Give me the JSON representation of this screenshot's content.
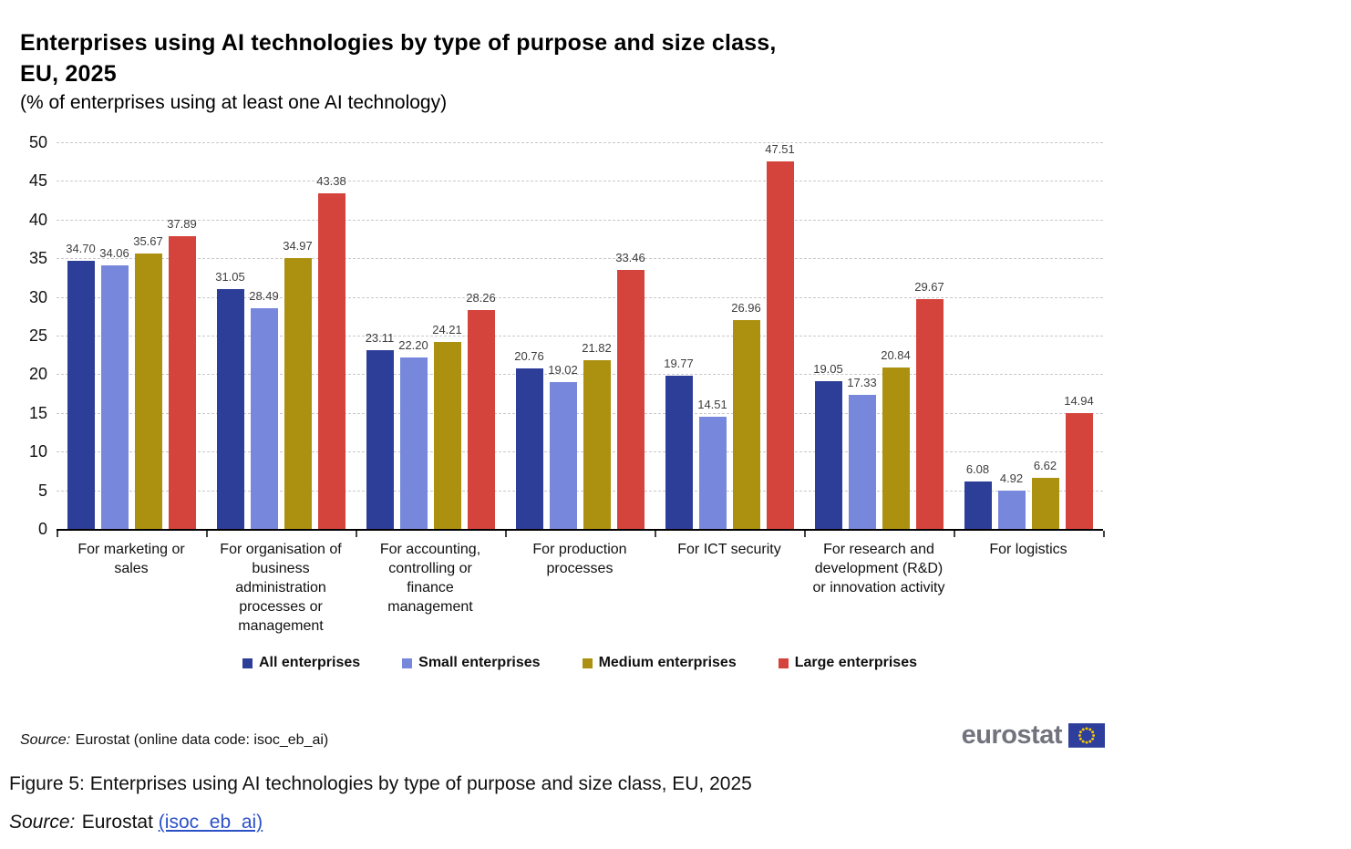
{
  "title": "Enterprises using AI technologies by type of purpose and size class,\nEU, 2025",
  "subtitle": "(% of enterprises using at least one AI technology)",
  "chart_data": {
    "type": "bar",
    "categories": [
      "For marketing or sales",
      "For organisation of business administration processes or management",
      "For accounting, controlling or finance management",
      "For production processes",
      "For ICT security",
      "For research and development (R&D) or innovation activity",
      "For logistics"
    ],
    "categories_display": [
      "For marketing or\nsales",
      "For organisation of\nbusiness\nadministration\nprocesses or\nmanagement",
      "For accounting,\ncontrolling or\nfinance\nmanagement",
      "For production\nprocesses",
      "For ICT security",
      "For research and\ndevelopment (R&D)\nor innovation activity",
      "For logistics"
    ],
    "series": [
      {
        "name": "All enterprises",
        "color": "#2D3E99",
        "values": [
          34.7,
          31.05,
          23.11,
          20.76,
          19.77,
          19.05,
          6.08
        ]
      },
      {
        "name": "Small enterprises",
        "color": "#7787DB",
        "values": [
          34.06,
          28.49,
          22.2,
          19.02,
          14.51,
          17.33,
          4.92
        ]
      },
      {
        "name": "Medium enterprises",
        "color": "#AC9110",
        "values": [
          35.67,
          34.97,
          24.21,
          21.82,
          26.96,
          20.84,
          6.62
        ]
      },
      {
        "name": "Large enterprises",
        "color": "#D5443C",
        "values": [
          37.89,
          43.38,
          28.26,
          33.46,
          47.51,
          29.67,
          14.94
        ]
      }
    ],
    "ylim": [
      0,
      50
    ],
    "ytick_step": 5,
    "grid": "horizontal-dashed",
    "legend_position": "bottom",
    "value_labels": "2-decimals above each bar"
  },
  "footer": {
    "source_note_prefix": "Source:",
    "source_note_text": "Eurostat (online data code: isoc_eb_ai)",
    "logo_text": "eurostat",
    "caption": "Figure 5: Enterprises using AI technologies by type of purpose and size class, EU, 2025",
    "source2_prefix": "Source:",
    "source2_text": "Eurostat",
    "source2_link": "(isoc_eb_ai)"
  },
  "colors": {
    "gridline": "#c9c9c9",
    "axis": "#000000",
    "value_label": "#3d3d3d",
    "link": "#2b50c8",
    "logo_text": "#73737e",
    "flag_blue": "#2e3e9c",
    "flag_stars": "#ffcc00"
  }
}
